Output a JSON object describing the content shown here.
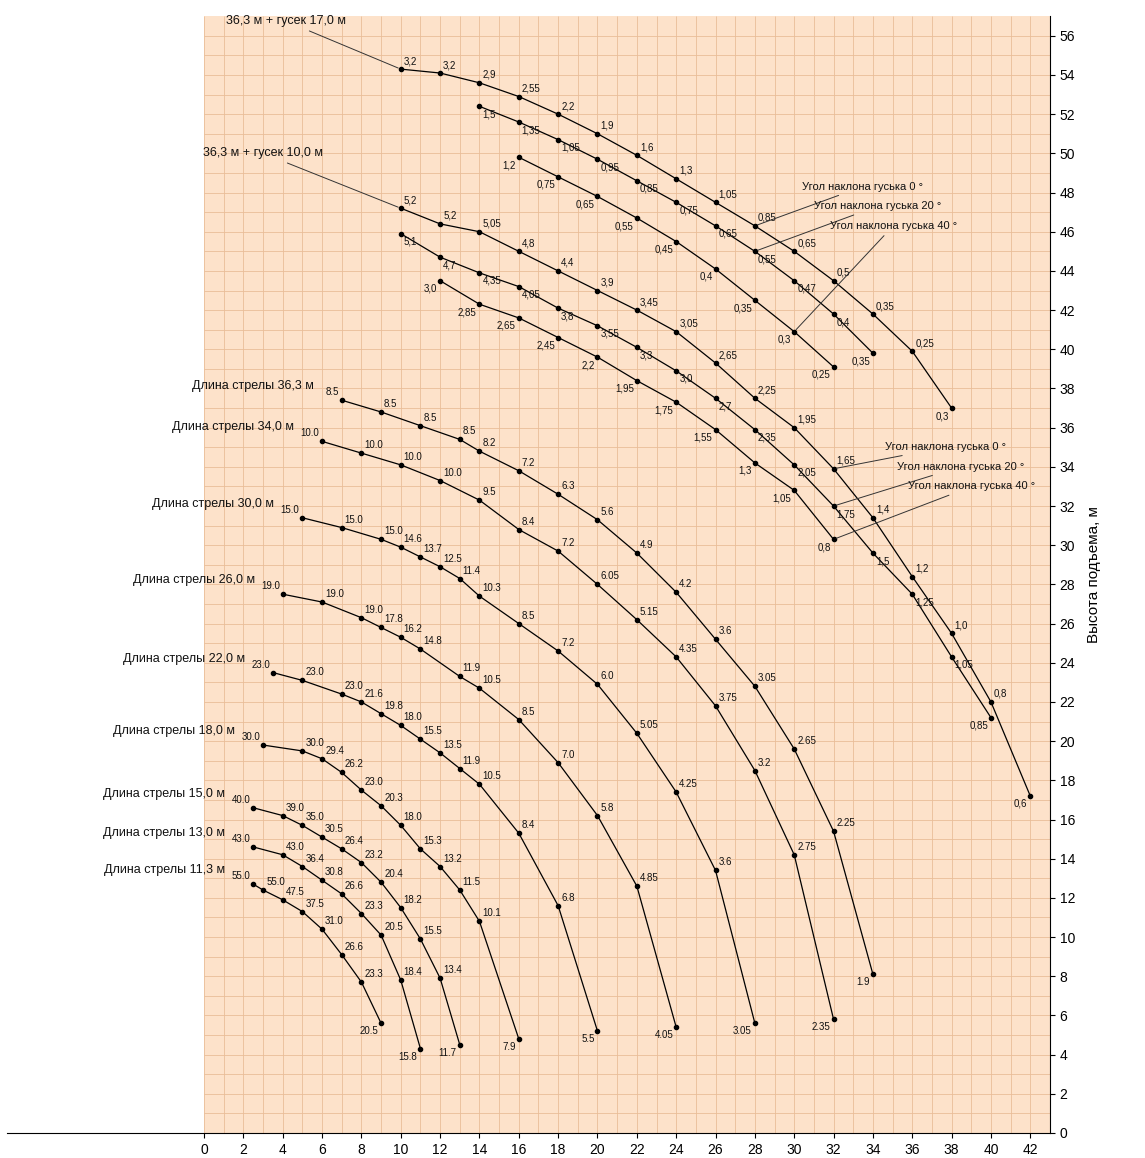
{
  "chart_data": {
    "type": "line",
    "y_label": "Высота подъема, м",
    "xlim": [
      -10,
      43
    ],
    "ylim": [
      0,
      57
    ],
    "xticks": [
      0,
      2,
      4,
      6,
      8,
      10,
      12,
      14,
      16,
      18,
      20,
      22,
      24,
      26,
      28,
      30,
      32,
      34,
      36,
      38,
      40,
      42
    ],
    "yticks": [
      0,
      2,
      4,
      6,
      8,
      10,
      12,
      14,
      16,
      18,
      20,
      22,
      24,
      26,
      28,
      30,
      32,
      34,
      36,
      38,
      40,
      42,
      44,
      46,
      48,
      50,
      52,
      54,
      56
    ],
    "grid": true,
    "color": "#000000",
    "marker": "circle",
    "line_style": "solid",
    "series": [
      {
        "name": "Длина стрелы 36,3 м",
        "x": [
          7,
          9,
          11,
          13,
          14,
          16,
          18,
          20,
          22,
          24,
          26,
          28,
          30,
          32,
          34
        ],
        "values": [
          37.4,
          36.8,
          36.1,
          35.4,
          34.8,
          33.8,
          32.6,
          31.3,
          29.6,
          27.6,
          25.2,
          22.8,
          19.6,
          15.4,
          8.1
        ],
        "load_labels": [
          "8.5",
          "8.5",
          "8.5",
          "8.5",
          "8.2",
          "7.2",
          "6.3",
          "5.6",
          "4.9",
          "4.2",
          "3.6",
          "3.05",
          "2.65",
          "2.25",
          "1.9"
        ]
      },
      {
        "name": "Длина стрелы 34,0 м",
        "x": [
          6,
          8,
          10,
          12,
          14,
          16,
          18,
          20,
          22,
          24,
          26,
          28,
          30,
          32
        ],
        "values": [
          35.3,
          34.7,
          34.1,
          33.3,
          32.3,
          30.8,
          29.7,
          28.0,
          26.2,
          24.3,
          21.8,
          18.5,
          14.2,
          5.8
        ],
        "load_labels": [
          "10.0",
          "10.0",
          "10.0",
          "10.0",
          "9.5",
          "8.4",
          "7.2",
          "6.05",
          "5.15",
          "4.35",
          "3.75",
          "3.2",
          "2.75",
          "2.35"
        ]
      },
      {
        "name": "Длина стрелы 30,0 м",
        "x": [
          5,
          7,
          9,
          10,
          11,
          12,
          13,
          14,
          16,
          18,
          20,
          22,
          24,
          26,
          28
        ],
        "values": [
          31.4,
          30.9,
          30.3,
          29.9,
          29.4,
          28.9,
          28.3,
          27.4,
          26.0,
          24.6,
          22.9,
          20.4,
          17.4,
          13.4,
          5.6
        ],
        "load_labels": [
          "15.0",
          "15.0",
          "15.0",
          "14.6",
          "13.7",
          "12.5",
          "11.4",
          "10.3",
          "8.5",
          "7.2",
          "6.0",
          "5.05",
          "4.25",
          "3.6",
          "3.05"
        ]
      },
      {
        "name": "Длина стрелы 26,0 м",
        "x": [
          4,
          6,
          8,
          9,
          10,
          11,
          13,
          14,
          16,
          18,
          20,
          22,
          24
        ],
        "values": [
          27.5,
          27.1,
          26.3,
          25.8,
          25.3,
          24.7,
          23.3,
          22.7,
          21.1,
          18.9,
          16.2,
          12.6,
          5.4
        ],
        "load_labels": [
          "19.0",
          "19.0",
          "19.0",
          "17.8",
          "16.2",
          "14.8",
          "11.9",
          "10.5",
          "8.5",
          "7.0",
          "5.8",
          "4.85",
          "4.05"
        ]
      },
      {
        "name": "Длина стрелы 22,0 м",
        "x": [
          3.5,
          5,
          7,
          8,
          9,
          10,
          11,
          12,
          13,
          14,
          16,
          18,
          20
        ],
        "values": [
          23.5,
          23.1,
          22.4,
          22.0,
          21.4,
          20.8,
          20.1,
          19.4,
          18.6,
          17.8,
          15.3,
          11.6,
          5.2
        ],
        "load_labels": [
          "23.0",
          "23.0",
          "23.0",
          "21.6",
          "19.8",
          "18.0",
          "15.5",
          "13.5",
          "11.9",
          "10.5",
          "8.4",
          "6.8",
          "5.5"
        ]
      },
      {
        "name": "Длина стрелы 18,0 м",
        "x": [
          3,
          5,
          6,
          7,
          8,
          9,
          10,
          11,
          12,
          13,
          14,
          16
        ],
        "values": [
          19.8,
          19.5,
          19.1,
          18.4,
          17.5,
          16.7,
          15.7,
          14.5,
          13.6,
          12.4,
          10.8,
          4.8
        ],
        "load_labels": [
          "30.0",
          "30.0",
          "29.4",
          "26.2",
          "23.0",
          "20.3",
          "18.0",
          "15.3",
          "13.2",
          "11.5",
          "10.1",
          "7.9"
        ]
      },
      {
        "name": "Длина стрелы 15,0 м",
        "x": [
          2.5,
          4,
          5,
          6,
          7,
          8,
          9,
          10,
          11,
          12,
          13
        ],
        "values": [
          16.6,
          16.2,
          15.7,
          15.1,
          14.5,
          13.8,
          12.8,
          11.5,
          9.9,
          7.9,
          4.5
        ],
        "load_labels": [
          "40.0",
          "39.0",
          "35.0",
          "30.5",
          "26.4",
          "23.2",
          "20.4",
          "18.2",
          "15.5",
          "13.4",
          "11.7"
        ]
      },
      {
        "name": "Длина стрелы 13,0 м",
        "x": [
          2.5,
          4,
          5,
          6,
          7,
          8,
          9,
          10,
          11
        ],
        "values": [
          14.6,
          14.2,
          13.6,
          12.9,
          12.2,
          11.2,
          10.1,
          7.8,
          4.3
        ],
        "load_labels": [
          "43.0",
          "43.0",
          "36.4",
          "30.8",
          "26.6",
          "23.3",
          "20.5",
          "18.4",
          "15.8"
        ]
      },
      {
        "name": "Длина стрелы 11,3 м",
        "x": [
          2.5,
          3,
          4,
          5,
          6,
          7,
          8,
          9
        ],
        "values": [
          12.7,
          12.4,
          11.9,
          11.3,
          10.4,
          9.1,
          7.7,
          5.6
        ],
        "load_labels": [
          "55.0",
          "55.0",
          "47.5",
          "37.5",
          "31.0",
          "26.6",
          "23.3",
          "20.5"
        ]
      }
    ],
    "jibs": [
      {
        "name": "36,3 м + гусек 17,0 м",
        "series": [
          {
            "name": "Угол наклона гуська 0 °",
            "x": [
              10,
              12,
              14,
              16,
              18,
              20,
              22,
              24,
              26,
              28,
              30,
              32,
              34,
              36,
              38
            ],
            "values": [
              54.3,
              54.1,
              53.6,
              52.9,
              52.0,
              51.0,
              49.9,
              48.7,
              47.5,
              46.3,
              45.0,
              43.5,
              41.8,
              39.9,
              37.0
            ],
            "load_labels": [
              "3,2",
              "3,2",
              "2,9",
              "2,55",
              "2,2",
              "1,9",
              "1,6",
              "1,3",
              "1,05",
              "0,85",
              "0,65",
              "0,5",
              "0,35",
              "0,25",
              "0,3"
            ]
          },
          {
            "name": "Угол наклона гуська 20 °",
            "x": [
              14,
              16,
              18,
              20,
              22,
              24,
              26,
              28,
              30,
              32,
              34
            ],
            "values": [
              52.4,
              51.6,
              50.7,
              49.7,
              48.6,
              47.5,
              46.3,
              45.0,
              43.5,
              41.8,
              39.8
            ],
            "load_labels": [
              "1,5",
              "1,35",
              "1,05",
              "0,95",
              "0,85",
              "0,75",
              "0,65",
              "0,55",
              "0,47",
              "0,4",
              "0,35"
            ]
          },
          {
            "name": "Угол наклона гуська 40 °",
            "x": [
              16,
              18,
              20,
              22,
              24,
              26,
              28,
              30,
              32
            ],
            "values": [
              49.8,
              48.8,
              47.8,
              46.7,
              45.5,
              44.1,
              42.5,
              40.9,
              39.1
            ],
            "load_labels": [
              "1,2",
              "0,75",
              "0,65",
              "0,55",
              "0,45",
              "0,4",
              "0,35",
              "0,3",
              "0,25"
            ]
          }
        ]
      },
      {
        "name": "36,3 м + гусек 10,0 м",
        "series": [
          {
            "name": "Угол наклона гуська 0 °",
            "x": [
              10,
              12,
              14,
              16,
              18,
              20,
              22,
              24,
              26,
              28,
              30,
              32,
              34,
              36,
              38,
              40,
              42
            ],
            "values": [
              47.2,
              46.4,
              46.0,
              45.0,
              44.0,
              43.0,
              42.0,
              40.9,
              39.3,
              37.5,
              36.0,
              33.9,
              31.4,
              28.4,
              25.5,
              22.0,
              17.2
            ],
            "load_labels": [
              "5,2",
              "5,2",
              "5,05",
              "4,8",
              "4,4",
              "3,9",
              "3,45",
              "3,05",
              "2,65",
              "2,25",
              "1,95",
              "1,65",
              "1,4",
              "1,2",
              "1,0",
              "0,8",
              "0,6"
            ]
          },
          {
            "name": "Угол наклона гуська 20 °",
            "x": [
              10,
              12,
              14,
              16,
              18,
              20,
              22,
              24,
              26,
              28,
              30,
              32,
              34,
              36,
              38,
              40
            ],
            "values": [
              45.9,
              44.7,
              43.9,
              43.2,
              42.1,
              41.2,
              40.1,
              38.9,
              37.5,
              35.9,
              34.1,
              32.0,
              29.6,
              27.5,
              24.3,
              21.2
            ],
            "load_labels": [
              "5,1",
              "4,7",
              "4,35",
              "4,05",
              "3,8",
              "3,55",
              "3,3",
              "3,0",
              "2,7",
              "2,35",
              "2,05",
              "1,75",
              "1,5",
              "1,25",
              "1,05",
              "0,85"
            ]
          },
          {
            "name": "Угол наклона гуська 40 °",
            "x": [
              12,
              14,
              16,
              18,
              20,
              22,
              24,
              26,
              28,
              30,
              32
            ],
            "values": [
              43.5,
              42.3,
              41.6,
              40.6,
              39.6,
              38.4,
              37.3,
              35.9,
              34.2,
              32.8,
              30.3
            ],
            "load_labels": [
              "3,0",
              "2,85",
              "2,65",
              "2,45",
              "2,2",
              "1,95",
              "1,75",
              "1,55",
              "1,3",
              "1,05",
              "0,8"
            ]
          }
        ]
      }
    ]
  }
}
